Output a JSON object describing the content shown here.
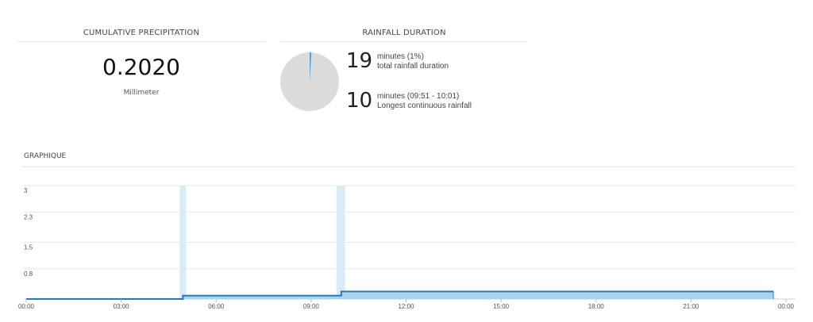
{
  "precipitation": {
    "title": "CUMULATIVE PRECIPITATION",
    "value": "0.2020",
    "unit": "Millimeter"
  },
  "duration": {
    "title": "RAINFALL DURATION",
    "pie": {
      "rain_fraction": 0.01,
      "rain_color": "#5a9fd4",
      "rest_color": "#dcdcdc"
    },
    "total": {
      "number": "19",
      "line1": "minutes (1%)",
      "line2": "total rainfall duration"
    },
    "longest": {
      "number": "10",
      "line1": "minutes (09:51 - 10:01)",
      "line2": "Longest continuous rainfall"
    }
  },
  "graph": {
    "title": "GRAPHIQUE"
  },
  "chart_data": {
    "type": "area",
    "title": "",
    "xlabel": "",
    "ylabel": "",
    "x_unit": "hour",
    "xlim": [
      0,
      24
    ],
    "ylim": [
      0,
      3
    ],
    "x_ticks": [
      {
        "value": 0,
        "label": "00:00"
      },
      {
        "value": 3,
        "label": "03:00"
      },
      {
        "value": 6,
        "label": "06:00"
      },
      {
        "value": 9,
        "label": "09:00"
      },
      {
        "value": 12,
        "label": "12:00"
      },
      {
        "value": 15,
        "label": "15:00"
      },
      {
        "value": 18,
        "label": "18:00"
      },
      {
        "value": 21,
        "label": "21:00"
      },
      {
        "value": 24,
        "label": "00:00"
      }
    ],
    "y_ticks": [
      {
        "value": 3,
        "label": "3"
      },
      {
        "value": 2.3,
        "label": "2.3"
      },
      {
        "value": 1.5,
        "label": "1.5"
      },
      {
        "value": 0.8,
        "label": "0.8"
      }
    ],
    "grid": true,
    "line_color": "#2a7ab8",
    "fill_color": "#a9d4ee",
    "band_color": "#d8ebf8",
    "rain_periods": [
      {
        "start": 4.9,
        "end": 5.0
      },
      {
        "start": 9.85,
        "end": 10.02
      }
    ],
    "series": [
      {
        "points": [
          [
            0,
            0
          ],
          [
            4.95,
            0
          ],
          [
            4.95,
            0.09
          ],
          [
            9.95,
            0.09
          ],
          [
            9.95,
            0.2
          ],
          [
            23.6,
            0.2
          ]
        ]
      }
    ]
  }
}
